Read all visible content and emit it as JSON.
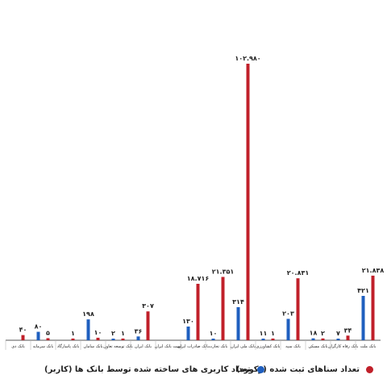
{
  "colors": {
    "blue": "#1f5fbf",
    "red": "#c0202a",
    "axis": "#555555",
    "text": "#222222"
  },
  "legend": {
    "red_label": "تعداد سناهای ثبت شده (رکورد)",
    "blue_label": "تعداد کاربری های ساخته شده توسط بانک ها (کاربر)"
  },
  "chart_data": {
    "type": "bar",
    "categories": [
      "بانک دی",
      "بانک سرمایه",
      "بانک پاسارگاد",
      "بانک سامان",
      "بانک توسعه تعاون",
      "بانک ایران",
      "پست بانک ایران",
      "بانک صادرات ایران",
      "بانک تجارت",
      "بانک ملی ایران",
      "بانک کشاورزی",
      "بانک سپه",
      "بانک مسکن",
      "بانک رفاه کارگران",
      "بانک ملت"
    ],
    "series": [
      {
        "name": "تعداد کاربری های ساخته شده توسط بانک ها (کاربر)",
        "color": "blue",
        "values": [
          null,
          80,
          null,
          198,
          2,
          36,
          null,
          130,
          10,
          314,
          11,
          203,
          18,
          7,
          421
        ],
        "labels": [
          "",
          "۸۰",
          "",
          "۱۹۸",
          "۲",
          "۳۶",
          "",
          "۱۳۰",
          "۱۰",
          "۳۱۴",
          "۱۱",
          "۲۰۳",
          "۱۸",
          "۷",
          "۴۲۱"
        ]
      },
      {
        "name": "تعداد سناهای ثبت شده (رکورد)",
        "color": "red",
        "values": [
          40,
          5,
          1,
          10,
          1,
          307,
          null,
          18716,
          21351,
          102980,
          1,
          20831,
          2,
          34,
          21838
        ],
        "labels": [
          "۴۰",
          "۵",
          "۱",
          "۱۰",
          "۱",
          "۳۰۷",
          "",
          "۱۸.۷۱۶",
          "۲۱.۳۵۱",
          "۱۰۲.۹۸۰",
          "۱",
          "۲۰.۸۳۱",
          "۲",
          "۳۴",
          "۲۱.۸۳۸"
        ]
      }
    ],
    "title": "",
    "xlabel": "",
    "ylabel": "",
    "grid": false,
    "legend_position": "bottom"
  }
}
